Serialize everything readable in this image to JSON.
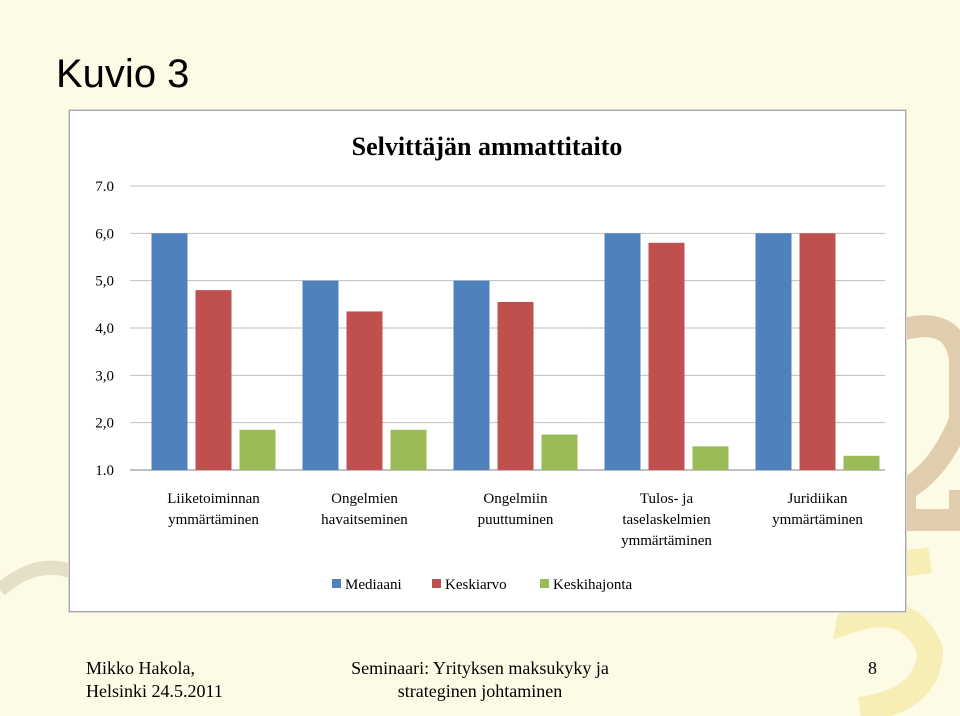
{
  "slide": {
    "title": "Kuvio 3",
    "footer_left_line1": "Mikko Hakola,",
    "footer_left_line2": "Helsinki 24.5.2011",
    "footer_center_line1": "Seminaari: Yrityksen maksukyky ja",
    "footer_center_line2": "strateginen johtaminen",
    "page_number": "8"
  },
  "chart_data": {
    "type": "bar",
    "title": "Selvittäjän ammattitaito",
    "categories": [
      [
        "Liiketoiminnan",
        "ymmärtäminen"
      ],
      [
        "Ongelmien",
        "havaitseminen"
      ],
      [
        "Ongelmiin",
        "puuttuminen"
      ],
      [
        "Tulos- ja",
        "taselaskelmien",
        "ymmärtäminen"
      ],
      [
        "Juridiikan",
        "ymmärtäminen"
      ]
    ],
    "series": [
      {
        "name": "Mediaani",
        "color": "#4f81bd",
        "values": [
          6.0,
          5.0,
          5.0,
          6.0,
          6.0
        ]
      },
      {
        "name": "Keskiarvo",
        "color": "#c0504d",
        "values": [
          4.8,
          4.35,
          4.55,
          5.8,
          6.0
        ]
      },
      {
        "name": "Keskihajonta",
        "color": "#9bbb59",
        "values": [
          1.85,
          1.85,
          1.75,
          1.5,
          1.3
        ]
      }
    ],
    "ylim": [
      1.0,
      7.0
    ],
    "yticks": [
      "1.0",
      "2,0",
      "3,0",
      "4,0",
      "5,0",
      "6,0",
      "7.0"
    ],
    "ytick_values": [
      1,
      2,
      3,
      4,
      5,
      6,
      7
    ],
    "grid": true,
    "legend": "bottom",
    "xlabel": "",
    "ylabel": ""
  }
}
